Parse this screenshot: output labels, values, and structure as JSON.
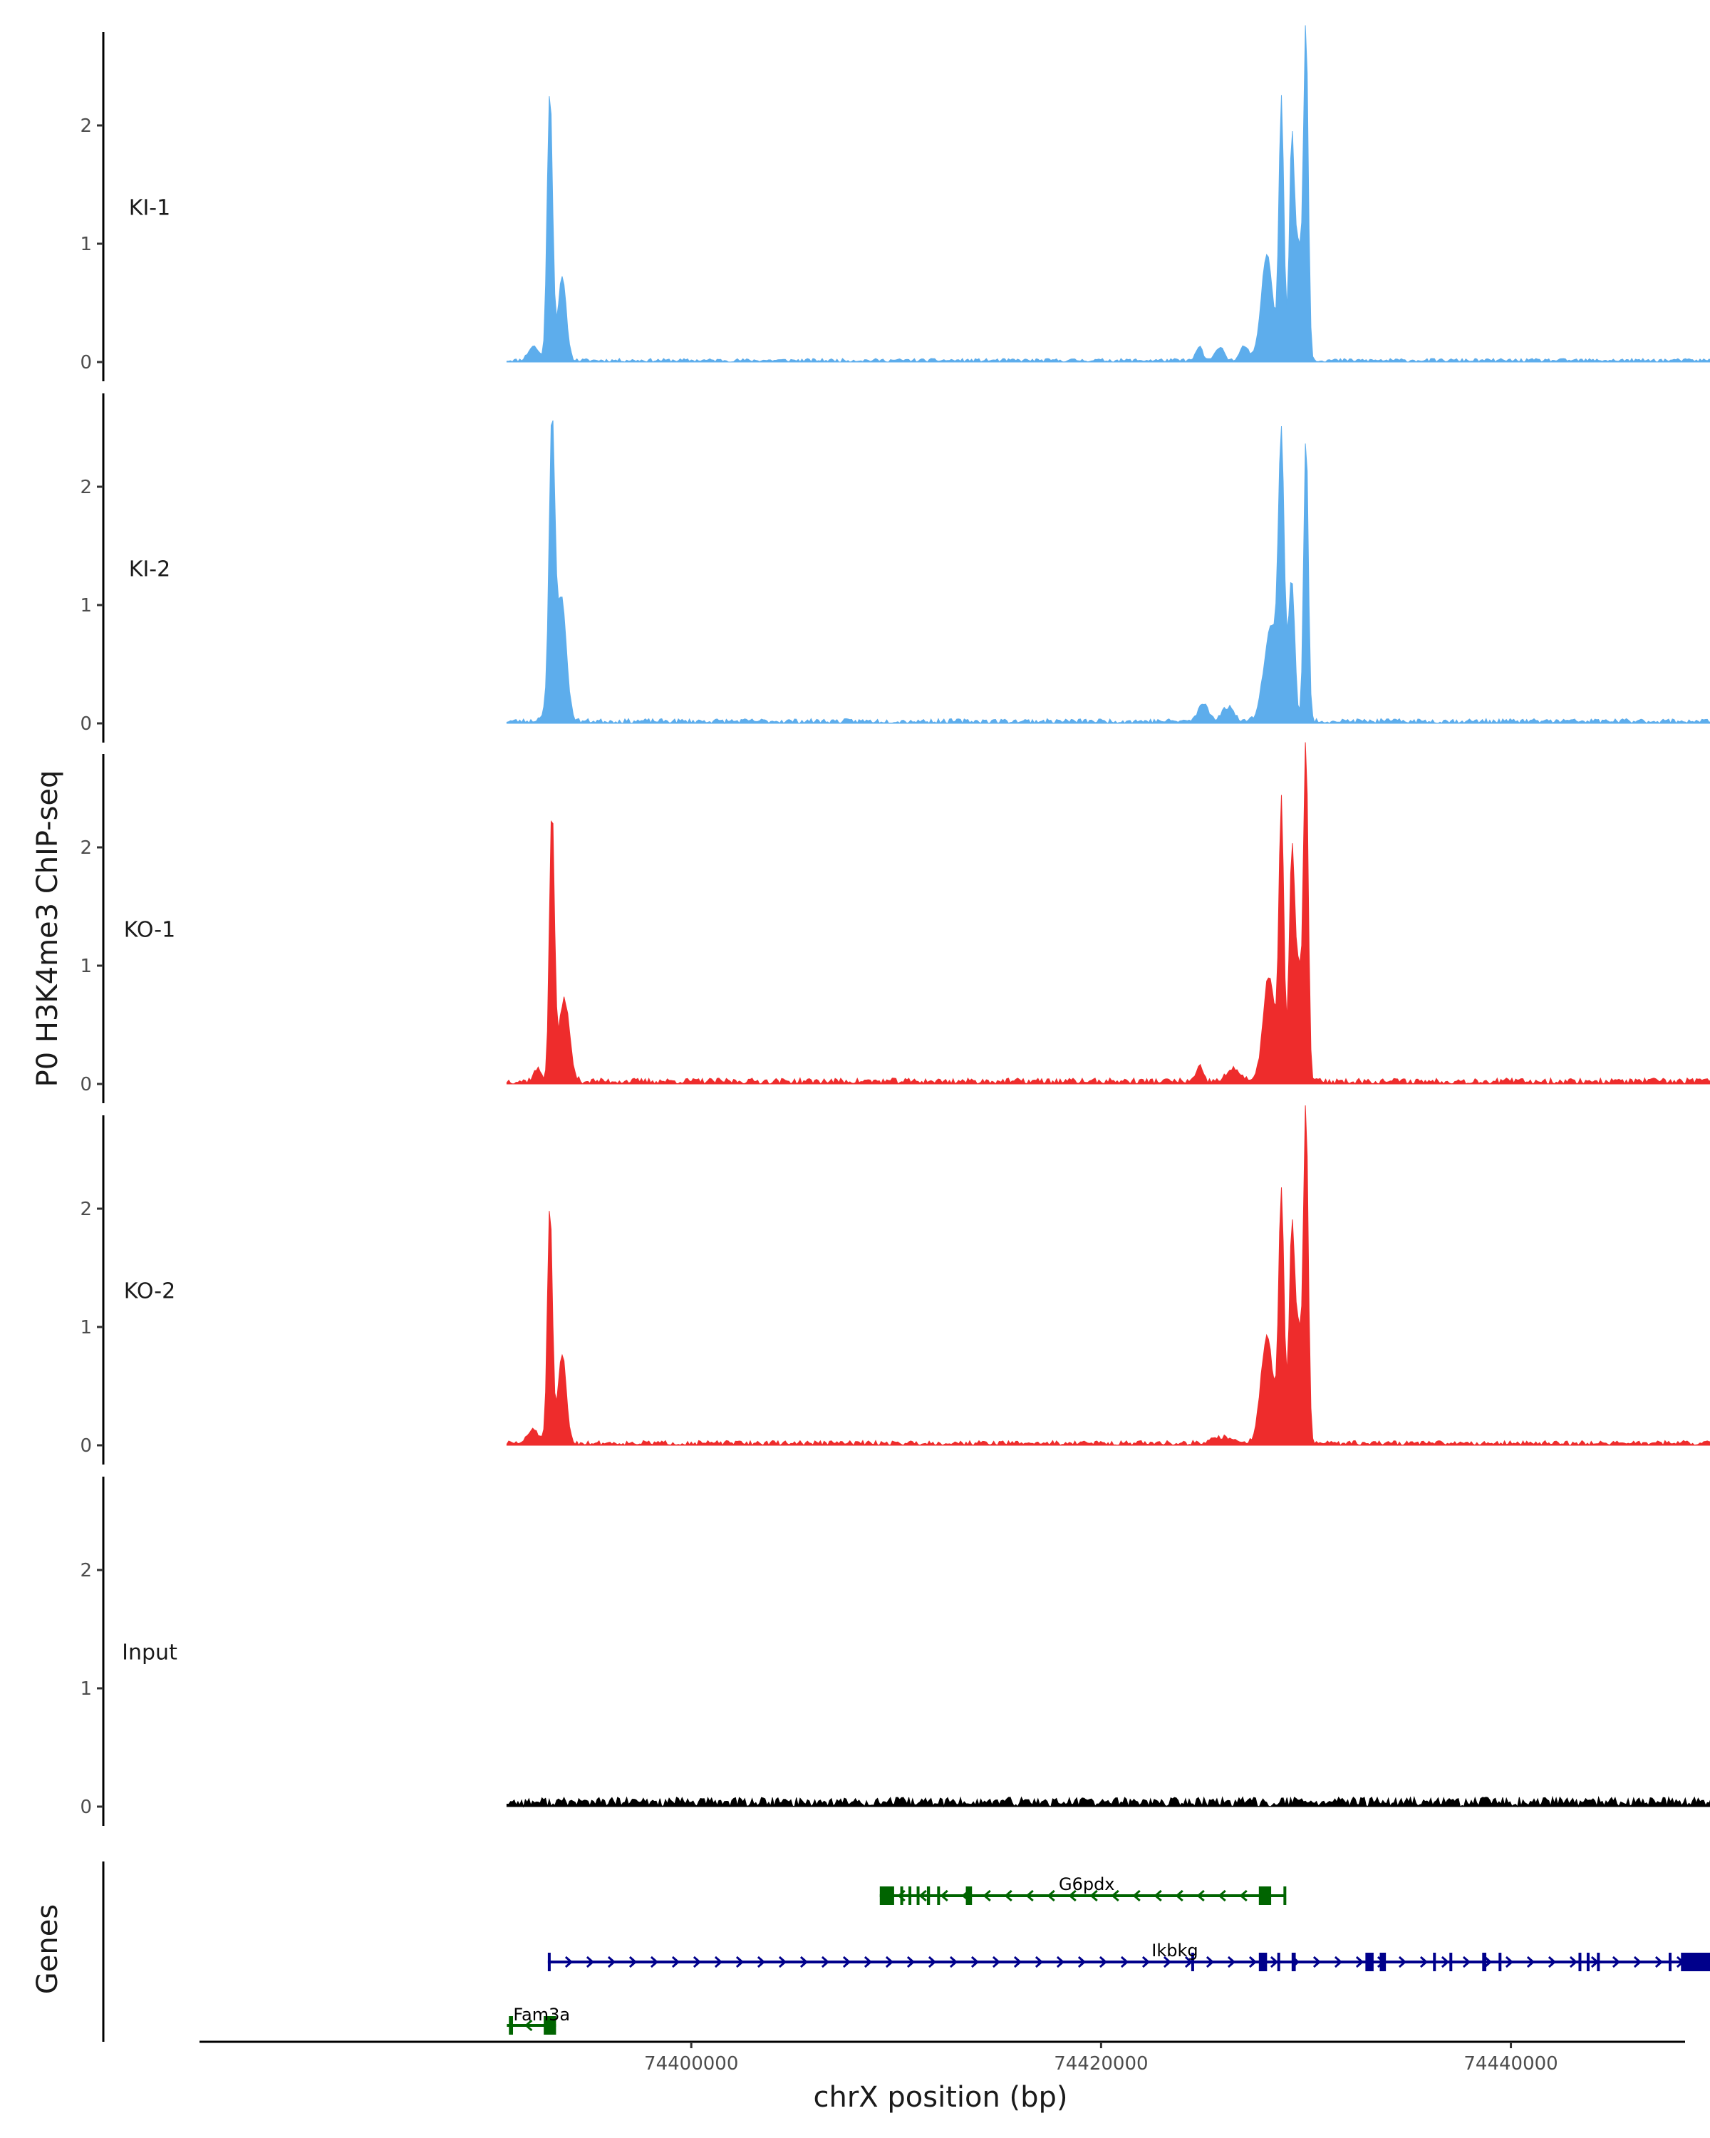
{
  "chart_data": {
    "type": "area",
    "ylabel": "P0 H3K4me3 ChIP-seq",
    "xlabel": "chrX position (bp)",
    "gene_panel_label": "Genes",
    "ylim": [
      0,
      2.7
    ],
    "yticks": [
      0,
      1,
      2
    ],
    "xlim": [
      74376000,
      74448500
    ],
    "xticks": [
      74400000,
      74420000,
      74440000
    ],
    "xtick_labels": [
      "74400000",
      "74420000",
      "74440000"
    ],
    "data_range": [
      74391000,
      74457000
    ],
    "colors": {
      "KI": "#5DADEC",
      "KO": "#EE2C2C",
      "Input": "#000000",
      "gene_minus": "#006400",
      "gene_plus": "#00008B"
    },
    "tracks": [
      {
        "name": "KI-1",
        "color": "#5DADEC",
        "base_peaks": [
          [
            74393100,
            2.3,
            130
          ],
          [
            74393700,
            0.7,
            200
          ],
          [
            74392300,
            0.12,
            250
          ]
        ],
        "peaks": [
          [
            74428800,
            2.2,
            120
          ],
          [
            74429300,
            1.45,
            110
          ],
          [
            74430000,
            2.6,
            110
          ],
          [
            74428100,
            0.9,
            280
          ],
          [
            74429600,
            1.0,
            250
          ],
          [
            74424800,
            0.12,
            150
          ],
          [
            74425800,
            0.12,
            200
          ],
          [
            74427000,
            0.12,
            200
          ]
        ],
        "noise": 0.015,
        "seed": 11
      },
      {
        "name": "KI-2",
        "color": "#5DADEC",
        "base_peaks": [
          [
            74393200,
            2.2,
            130
          ],
          [
            74393700,
            0.72,
            220
          ],
          [
            74393400,
            0.45,
            350
          ]
        ],
        "peaks": [
          [
            74428800,
            2.2,
            140
          ],
          [
            74429300,
            1.2,
            150
          ],
          [
            74430000,
            2.45,
            110
          ],
          [
            74428300,
            0.8,
            350
          ],
          [
            74425000,
            0.15,
            250
          ],
          [
            74426200,
            0.12,
            300
          ]
        ],
        "noise": 0.02,
        "seed": 23
      },
      {
        "name": "KO-1",
        "color": "#EE2C2C",
        "base_peaks": [
          [
            74393200,
            2.3,
            120
          ],
          [
            74393800,
            0.7,
            250
          ],
          [
            74392500,
            0.1,
            200
          ]
        ],
        "peaks": [
          [
            74428800,
            2.3,
            120
          ],
          [
            74429300,
            1.5,
            120
          ],
          [
            74430000,
            2.6,
            110
          ],
          [
            74428200,
            0.9,
            280
          ],
          [
            74429600,
            1.0,
            250
          ],
          [
            74424800,
            0.12,
            150
          ],
          [
            74426500,
            0.1,
            350
          ]
        ],
        "noise": 0.025,
        "seed": 37
      },
      {
        "name": "KO-2",
        "color": "#EE2C2C",
        "base_peaks": [
          [
            74393100,
            2.0,
            120
          ],
          [
            74393700,
            0.75,
            200
          ],
          [
            74392300,
            0.12,
            250
          ]
        ],
        "peaks": [
          [
            74428800,
            2.1,
            130
          ],
          [
            74429300,
            1.4,
            120
          ],
          [
            74430000,
            2.6,
            110
          ],
          [
            74428100,
            0.9,
            300
          ],
          [
            74429600,
            1.0,
            250
          ],
          [
            74426000,
            0.05,
            500
          ]
        ],
        "noise": 0.02,
        "seed": 51
      },
      {
        "name": "Input",
        "color": "#000000",
        "base_peaks": [],
        "peaks": [],
        "noise": 0.04,
        "seed": 77
      }
    ],
    "genes": [
      {
        "name": "G6pdx",
        "strand": "-",
        "start": 74409200,
        "end": 74429000,
        "color": "#006400",
        "exons": [
          [
            74409200,
            74409900
          ],
          [
            74410200,
            74410300
          ],
          [
            74410600,
            74410700
          ],
          [
            74411000,
            74411100
          ],
          [
            74411500,
            74411650
          ],
          [
            74412000,
            74412100
          ],
          [
            74413400,
            74413700
          ],
          [
            74427700,
            74428300
          ],
          [
            74428900,
            74429000
          ]
        ]
      },
      {
        "name": "Ikbkg",
        "strand": "+",
        "start": 74393000,
        "end": 74454000,
        "color": "#00008B",
        "exons": [
          [
            74393000,
            74393100
          ],
          [
            74424400,
            74424500
          ],
          [
            74427700,
            74428100
          ],
          [
            74428600,
            74428700
          ],
          [
            74429300,
            74429500
          ],
          [
            74432900,
            74433300
          ],
          [
            74433600,
            74433900
          ],
          [
            74436200,
            74436300
          ],
          [
            74437000,
            74437100
          ],
          [
            74438600,
            74438800
          ],
          [
            74439400,
            74439500
          ],
          [
            74443300,
            74443400
          ],
          [
            74443700,
            74443800
          ],
          [
            74444200,
            74444300
          ],
          [
            74447700,
            74447800
          ],
          [
            74448300,
            74454000
          ]
        ]
      },
      {
        "name": "Fam3a",
        "strand": "-",
        "start": 74391000,
        "end": 74393400,
        "color": "#006400",
        "exons": [
          [
            74392800,
            74393400
          ],
          [
            74391100,
            74391300
          ]
        ]
      }
    ]
  }
}
